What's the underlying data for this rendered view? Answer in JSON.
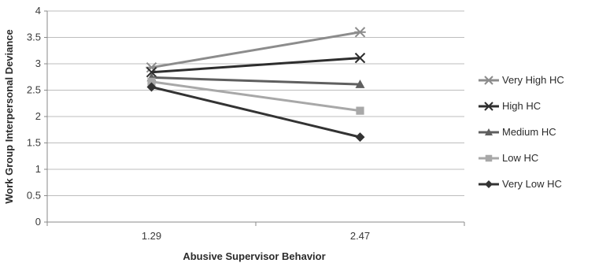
{
  "chart_data": {
    "type": "line",
    "title": "",
    "xlabel": "Abusive Supervisor Behavior",
    "ylabel": "Work Group Interpersonal Deviance",
    "categories": [
      "1.29",
      "2.47"
    ],
    "ylim": [
      0,
      4
    ],
    "yticks": [
      "0",
      "0.5",
      "1",
      "1.5",
      "2",
      "2.5",
      "3",
      "3.5",
      "4"
    ],
    "grid": true,
    "legend_position": "right",
    "series": [
      {
        "name": "Very High HC",
        "values": [
          2.93,
          3.6
        ],
        "color": "#8c8c8c",
        "marker": "star"
      },
      {
        "name": "High HC",
        "values": [
          2.84,
          3.11
        ],
        "color": "#2e2e2e",
        "marker": "x"
      },
      {
        "name": "Medium HC",
        "values": [
          2.74,
          2.61
        ],
        "color": "#5f5f5f",
        "marker": "triangle"
      },
      {
        "name": "Low HC",
        "values": [
          2.66,
          2.11
        ],
        "color": "#a8a8a8",
        "marker": "square"
      },
      {
        "name": "Very Low HC",
        "values": [
          2.56,
          1.61
        ],
        "color": "#333333",
        "marker": "diamond"
      }
    ]
  }
}
